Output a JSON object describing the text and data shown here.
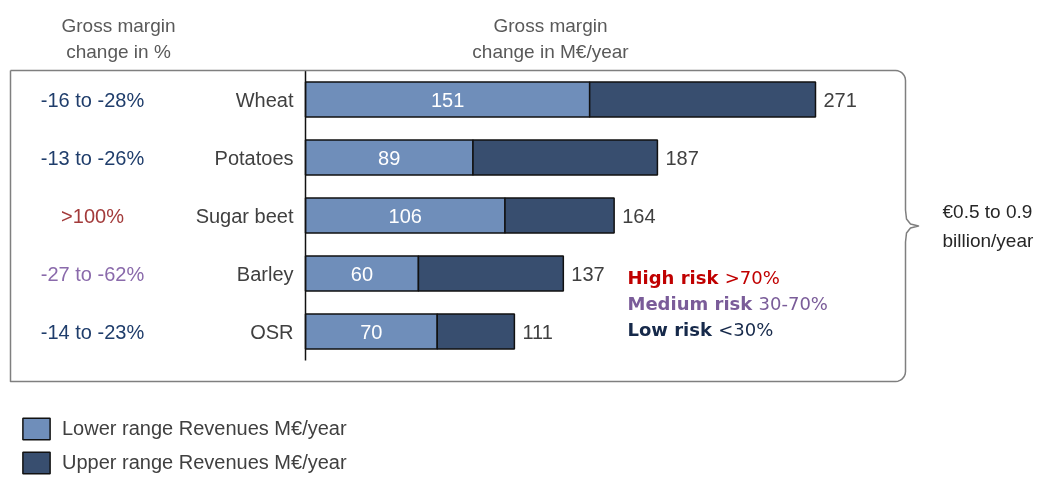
{
  "chart_data": {
    "type": "bar",
    "orientation": "horizontal",
    "stacked": true,
    "title": "Gross margin change in M€/year",
    "categories": [
      "Wheat",
      "Potatoes",
      "Sugar beet",
      "Barley",
      "OSR"
    ],
    "series": [
      {
        "name": "Lower range Revenues M€/year",
        "color": "#6f8eba",
        "values": [
          151,
          89,
          106,
          60,
          70
        ],
        "value_labels": [
          "151",
          "89",
          "106",
          "60",
          "70"
        ]
      },
      {
        "name": "Upper range Revenues M€/year",
        "color": "#384e6f",
        "values": [
          120,
          98,
          58,
          77,
          41
        ]
      }
    ],
    "totals": [
      "271",
      "187",
      "164",
      "137",
      "111"
    ],
    "legend": "bottom left",
    "tick_labels": "y",
    "annotations": [
      "Gross margin change in %",
      "-16 to -28%",
      "-13 to -26%",
      ">100%",
      "-27 to -62%",
      "-14 to -23%",
      "High risk >70%",
      "Medium risk 30-70%",
      "Low risk <30%",
      "€0.5 to 0.9 billion/year"
    ]
  }
}
